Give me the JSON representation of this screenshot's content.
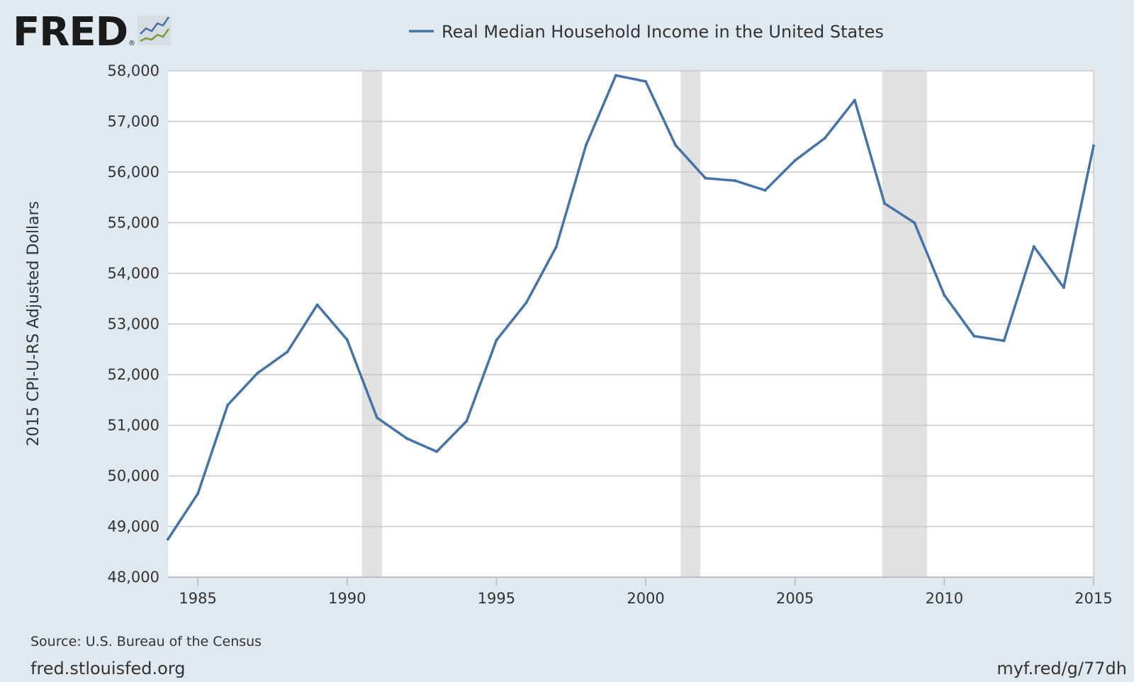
{
  "header": {
    "logo_text": "FRED",
    "logo_reg": "®",
    "logo_icon": "line-chart-icon"
  },
  "footer": {
    "source": "Source: U.S. Bureau of the Census",
    "site": "fred.stlouisfed.org",
    "short_link": "myf.red/g/77dh"
  },
  "colors": {
    "background": "#e1e9f0",
    "plot_background": "#ffffff",
    "series": "#4572a7",
    "recession": "#e1e1e1",
    "grid": "#c8c8c8"
  },
  "chart_data": {
    "type": "line",
    "title": "",
    "xlabel": "",
    "ylabel": "2015 CPI-U-RS Adjusted Dollars",
    "legend_position": "top-center",
    "grid": true,
    "xlim": [
      1984,
      2015
    ],
    "ylim": [
      48000,
      58000
    ],
    "x_ticks": [
      1985,
      1990,
      1995,
      2000,
      2005,
      2010,
      2015
    ],
    "y_ticks": [
      48000,
      49000,
      50000,
      51000,
      52000,
      53000,
      54000,
      55000,
      56000,
      57000,
      58000
    ],
    "y_tick_labels": [
      "48,000",
      "49,000",
      "50,000",
      "51,000",
      "52,000",
      "53,000",
      "54,000",
      "55,000",
      "56,000",
      "57,000",
      "58,000"
    ],
    "recessions": [
      {
        "start": 1990.5,
        "end": 1991.17
      },
      {
        "start": 2001.17,
        "end": 2001.83
      },
      {
        "start": 2007.92,
        "end": 2009.42
      }
    ],
    "series": [
      {
        "name": "Real Median Household Income in the United States",
        "x": [
          1984,
          1985,
          1986,
          1987,
          1988,
          1989,
          1990,
          1991,
          1992,
          1993,
          1994,
          1995,
          1996,
          1997,
          1998,
          1999,
          2000,
          2001,
          2002,
          2003,
          2004,
          2005,
          2006,
          2007,
          2008,
          2009,
          2010,
          2011,
          2012,
          2013,
          2014,
          2015
        ],
        "values": [
          48750,
          49650,
          51400,
          52030,
          52450,
          53380,
          52690,
          51150,
          50740,
          50480,
          51080,
          52680,
          53420,
          54520,
          56530,
          57910,
          57790,
          56530,
          55880,
          55830,
          55640,
          56230,
          56670,
          57420,
          55380,
          55000,
          53570,
          52760,
          52670,
          54530,
          53720,
          56520
        ]
      }
    ]
  }
}
